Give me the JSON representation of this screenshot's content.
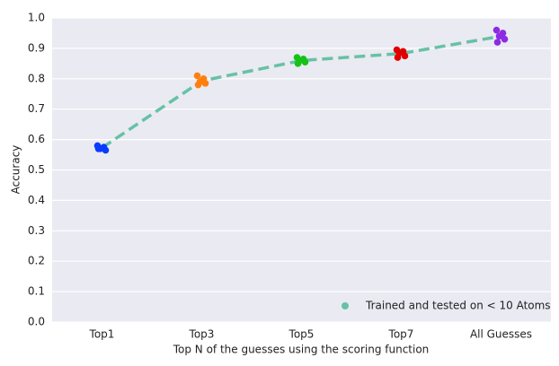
{
  "chart_data": {
    "type": "strip",
    "x_label": "Top N of the guesses using the scoring function",
    "y_label": "Accuracy",
    "categories": [
      "Top1",
      "Top3",
      "Top5",
      "Top7",
      "All Guesses"
    ],
    "ylim": [
      0,
      1
    ],
    "yticks": [
      {
        "value": 0,
        "label": "0.0"
      },
      {
        "value": 0.1,
        "label": "0.1"
      },
      {
        "value": 0.2,
        "label": "0.2"
      },
      {
        "value": 0.3,
        "label": "0.3"
      },
      {
        "value": 0.4,
        "label": "0.4"
      },
      {
        "value": 0.5,
        "label": "0.5"
      },
      {
        "value": 0.6,
        "label": "0.6"
      },
      {
        "value": 0.7,
        "label": "0.7"
      },
      {
        "value": 0.8,
        "label": "0.8"
      },
      {
        "value": 0.9,
        "label": "0.9"
      },
      {
        "value": 1,
        "label": "1.0"
      }
    ],
    "grid": true,
    "series": [
      {
        "name": "Trained and tested on < 10 Atoms",
        "color": "#66c2a5",
        "values": [
          0.573,
          0.793,
          0.86,
          0.883,
          0.94
        ]
      }
    ],
    "points": [
      {
        "color": "#0a3bff",
        "values": [
          0.58,
          0.575,
          0.57,
          0.565,
          0.57
        ]
      },
      {
        "color": "#ff7f0e",
        "values": [
          0.81,
          0.8,
          0.79,
          0.785,
          0.78
        ]
      },
      {
        "color": "#16c216",
        "values": [
          0.87,
          0.865,
          0.86,
          0.855,
          0.85
        ]
      },
      {
        "color": "#e00000",
        "values": [
          0.895,
          0.89,
          0.885,
          0.875,
          0.87
        ]
      },
      {
        "color": "#8b2be2",
        "values": [
          0.96,
          0.95,
          0.94,
          0.93,
          0.92
        ]
      }
    ]
  }
}
